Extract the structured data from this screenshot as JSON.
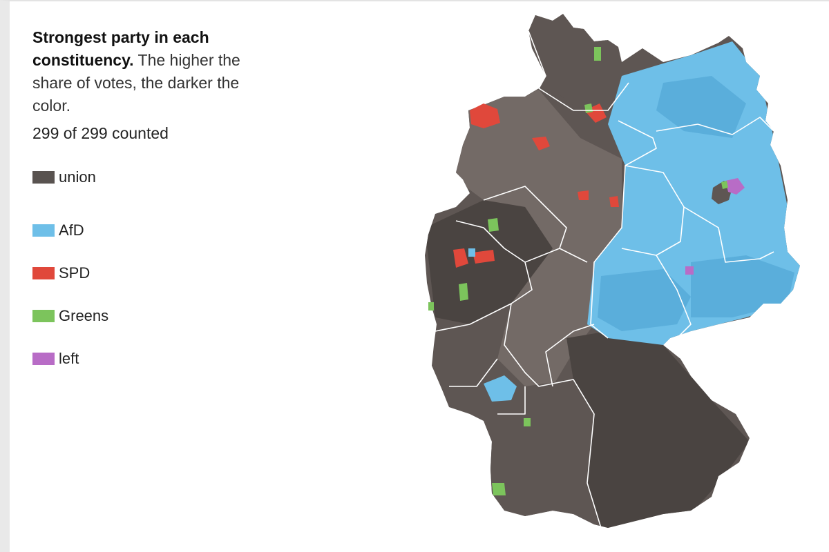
{
  "headline": {
    "bold": "Strongest party in each constituency.",
    "rest": "The higher the share of votes, the darker the color."
  },
  "counted": "299 of 299 counted",
  "legend": [
    {
      "label": "union",
      "color": "#595350"
    },
    {
      "label": "AfD",
      "color": "#6ebfe8"
    },
    {
      "label": "SPD",
      "color": "#e0483b"
    },
    {
      "label": "Greens",
      "color": "#7cc45c"
    },
    {
      "label": "left",
      "color": "#b86cc6"
    }
  ],
  "map": {
    "country": "Germany",
    "colors": {
      "union_dark": "#4a4441",
      "union": "#5e5653",
      "union_light": "#736a66",
      "afd": "#6ebfe8",
      "afd_dark": "#5aaedb",
      "spd": "#e0483b",
      "greens": "#7cc45c",
      "left": "#b86cc6",
      "border": "#ffffff"
    }
  }
}
